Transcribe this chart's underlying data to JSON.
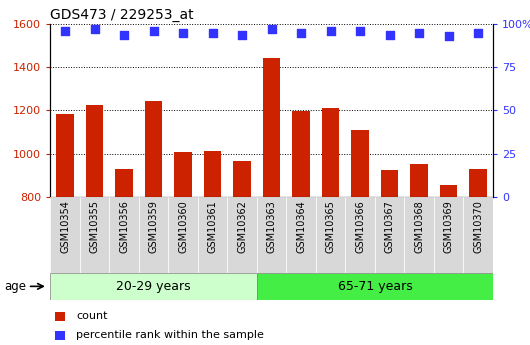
{
  "title": "GDS473 / 229253_at",
  "samples": [
    "GSM10354",
    "GSM10355",
    "GSM10356",
    "GSM10359",
    "GSM10360",
    "GSM10361",
    "GSM10362",
    "GSM10363",
    "GSM10364",
    "GSM10365",
    "GSM10366",
    "GSM10367",
    "GSM10368",
    "GSM10369",
    "GSM10370"
  ],
  "counts": [
    1185,
    1225,
    930,
    1245,
    1005,
    1010,
    965,
    1445,
    1195,
    1210,
    1110,
    925,
    950,
    855,
    930
  ],
  "percentile_ranks": [
    96,
    97,
    94,
    96,
    95,
    95,
    94,
    97,
    95,
    96,
    96,
    94,
    95,
    93,
    95
  ],
  "group1_label": "20-29 years",
  "group2_label": "65-71 years",
  "group1_count": 7,
  "group2_count": 8,
  "ylim_left": [
    800,
    1600
  ],
  "ylim_right": [
    0,
    100
  ],
  "yticks_left": [
    800,
    1000,
    1200,
    1400,
    1600
  ],
  "yticks_right": [
    0,
    25,
    50,
    75,
    100
  ],
  "bar_color": "#cc2200",
  "dot_color": "#3333ff",
  "group1_bg": "#ccffcc",
  "group2_bg": "#44ee44",
  "xtick_bg": "#d8d8d8",
  "grid_color": "#000000",
  "tick_label_color_left": "#cc2200",
  "tick_label_color_right": "#3333ff",
  "bar_width": 0.6,
  "dot_size": 40,
  "legend_count_label": "count",
  "legend_pct_label": "percentile rank within the sample"
}
